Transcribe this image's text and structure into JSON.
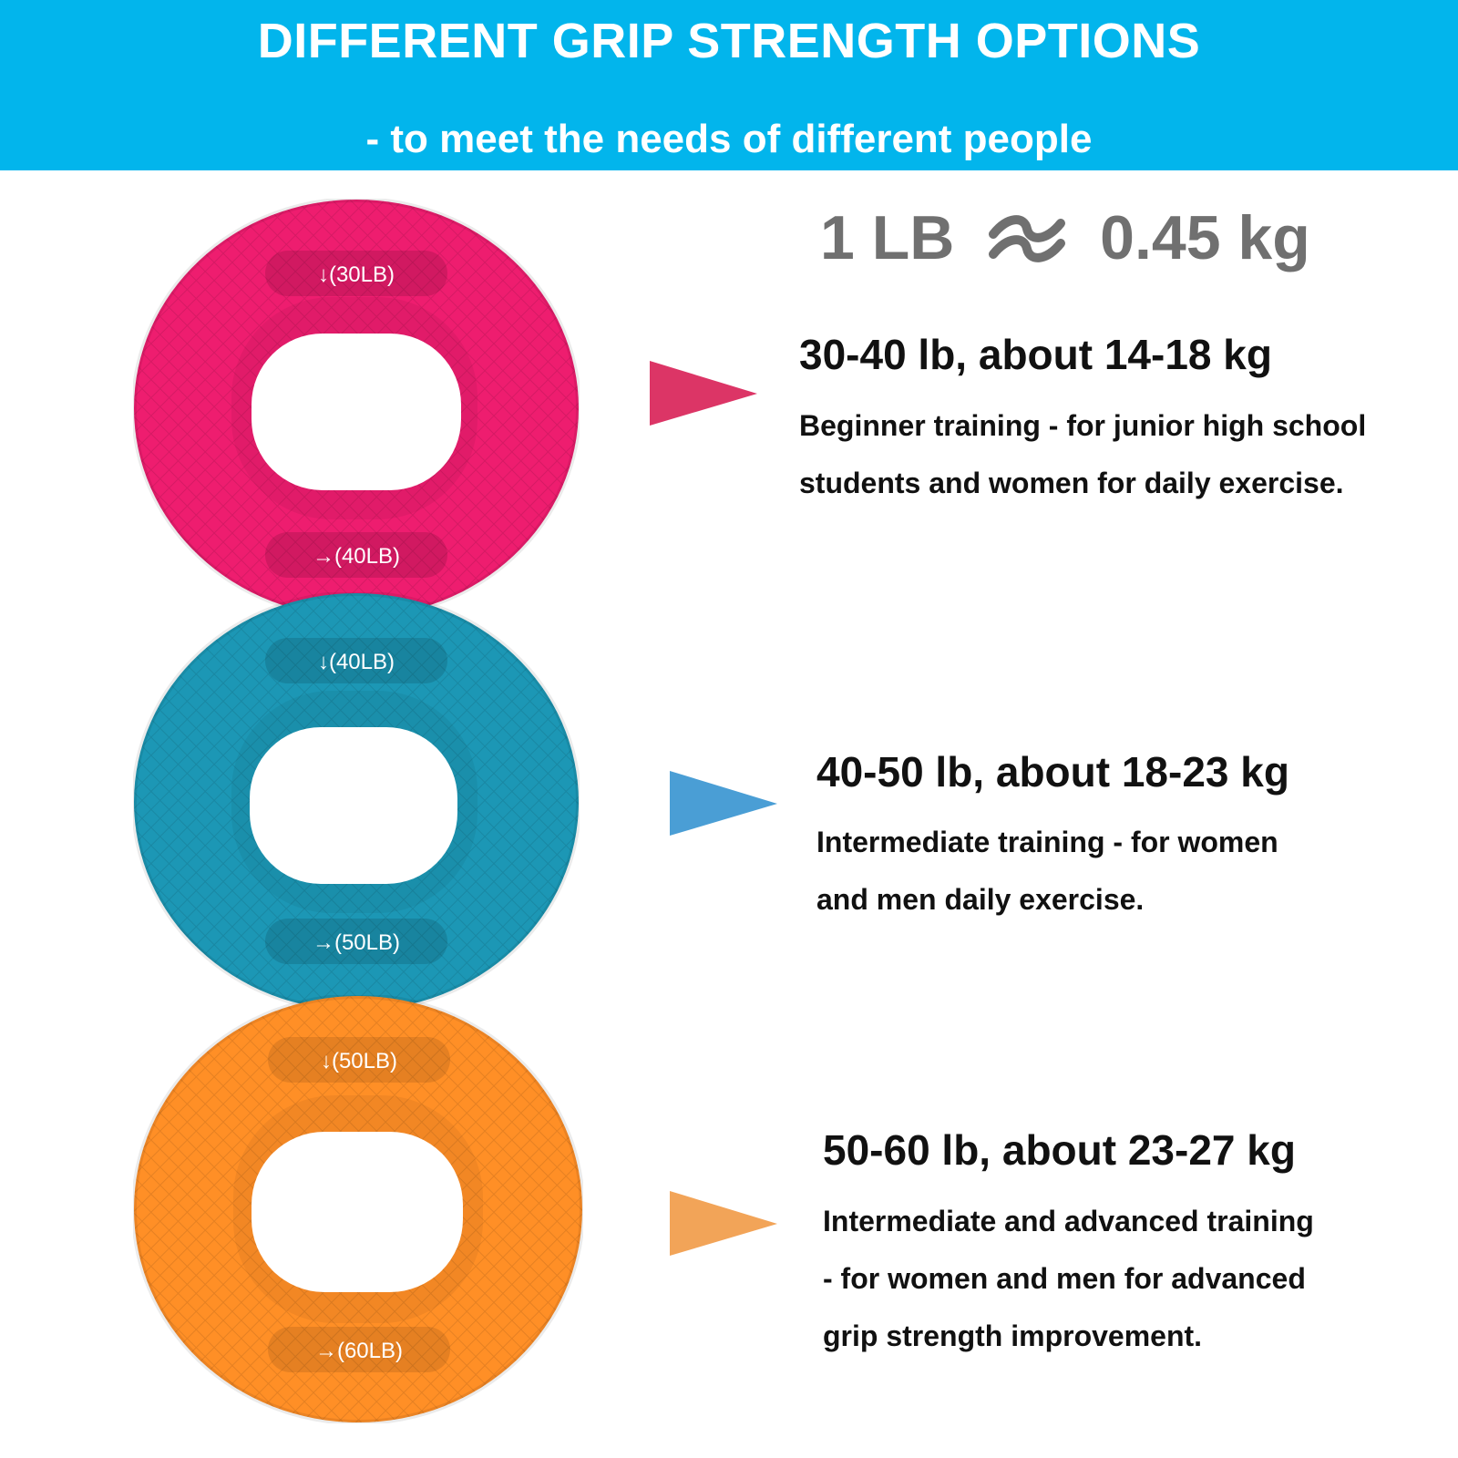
{
  "header": {
    "title": "DIFFERENT GRIP STRENGTH OPTIONS",
    "subtitle": "- to meet the needs of different people"
  },
  "conversion": {
    "left": "1 LB",
    "right": "0.45 kg"
  },
  "rings": [
    {
      "color": "#ee1d6f",
      "top_label": "↓(30LB)",
      "bottom_label": "→(40LB)"
    },
    {
      "color": "#1c97b5",
      "top_label": "↓(40LB)",
      "bottom_label": "→(50LB)"
    },
    {
      "color": "#ff8f26",
      "top_label": "↓(50LB)",
      "bottom_label": "→(60LB)"
    }
  ],
  "levels": [
    {
      "arrow_color": "#dc3566",
      "title": "30-40 lb, about 14-18 kg",
      "lines": [
        "Beginner training - for junior high school",
        "students and women for daily exercise."
      ]
    },
    {
      "arrow_color": "#4a9ed5",
      "title": "40-50 lb, about 18-23 kg",
      "lines": [
        "Intermediate training - for women",
        "and men daily exercise."
      ]
    },
    {
      "arrow_color": "#f2a458",
      "title": "50-60 lb, about 23-27 kg",
      "lines": [
        "Intermediate and advanced training",
        "- for women and men for advanced",
        "grip strength improvement."
      ]
    }
  ]
}
